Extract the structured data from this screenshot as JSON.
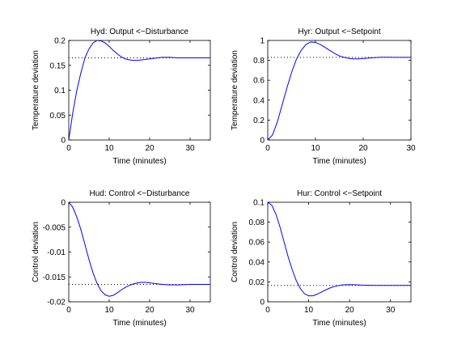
{
  "chart_data": [
    {
      "type": "line",
      "title": "Hyd: Output <−Disturbance",
      "xlabel": "Time (minutes)",
      "ylabel": "Temperature deviation",
      "xlim": [
        0,
        35
      ],
      "ylim": [
        0,
        0.2
      ],
      "xticks": [
        0,
        10,
        20,
        30
      ],
      "yticks": [
        0,
        0.05,
        0.1,
        0.15,
        0.2
      ],
      "ytick_labels": [
        "0",
        "0.05",
        "0.1",
        "0.15",
        "0.2"
      ],
      "reference_line": {
        "style": "dotted",
        "y": 0.165
      },
      "series": [
        {
          "color": "#0000ff",
          "x": [
            0,
            1,
            2,
            3,
            4,
            5,
            6,
            7,
            8,
            9,
            10,
            11,
            12,
            13,
            14,
            15,
            16,
            17,
            18,
            19,
            20,
            21,
            22,
            23,
            24,
            25,
            27,
            30,
            35
          ],
          "y": [
            0,
            0.055,
            0.1,
            0.135,
            0.165,
            0.183,
            0.195,
            0.2,
            0.199,
            0.195,
            0.188,
            0.18,
            0.173,
            0.167,
            0.163,
            0.161,
            0.16,
            0.16,
            0.161,
            0.162,
            0.163,
            0.164,
            0.165,
            0.166,
            0.166,
            0.166,
            0.165,
            0.165,
            0.165
          ]
        }
      ]
    },
    {
      "type": "line",
      "title": "Hyr: Output <−Setpoint",
      "xlabel": "Time (minutes)",
      "ylabel": "Temperature deviation",
      "xlim": [
        0,
        30
      ],
      "ylim": [
        0,
        1
      ],
      "xticks": [
        0,
        10,
        20,
        30
      ],
      "yticks": [
        0,
        0.2,
        0.4,
        0.6,
        0.8,
        1
      ],
      "ytick_labels": [
        "0",
        "0.2",
        "0.4",
        "0.6",
        "0.8",
        "1"
      ],
      "reference_line": {
        "style": "dotted",
        "y": 0.83
      },
      "series": [
        {
          "color": "#0000ff",
          "x": [
            0,
            1,
            2,
            3,
            4,
            5,
            6,
            7,
            8,
            9,
            10,
            11,
            12,
            13,
            14,
            15,
            16,
            17,
            18,
            19,
            20,
            21,
            22,
            23,
            24,
            25,
            27,
            30
          ],
          "y": [
            0,
            0.05,
            0.18,
            0.35,
            0.52,
            0.68,
            0.81,
            0.9,
            0.96,
            0.985,
            0.98,
            0.96,
            0.93,
            0.9,
            0.87,
            0.845,
            0.83,
            0.82,
            0.815,
            0.815,
            0.818,
            0.822,
            0.826,
            0.829,
            0.831,
            0.831,
            0.83,
            0.83
          ]
        }
      ]
    },
    {
      "type": "line",
      "title": "Hud: Control <−Disturbance",
      "xlabel": "Time (minutes)",
      "ylabel": "Control deviation",
      "xlim": [
        0,
        35
      ],
      "ylim": [
        -0.02,
        0
      ],
      "xticks": [
        0,
        10,
        20,
        30
      ],
      "yticks": [
        -0.02,
        -0.015,
        -0.01,
        -0.005,
        0
      ],
      "ytick_labels": [
        "-0.02",
        "-0.015",
        "-0.01",
        "-0.005",
        "0"
      ],
      "reference_line": {
        "style": "dotted",
        "y": -0.0165
      },
      "series": [
        {
          "color": "#0000ff",
          "x": [
            0,
            1,
            2,
            3,
            4,
            5,
            6,
            7,
            8,
            9,
            10,
            11,
            12,
            13,
            14,
            15,
            16,
            17,
            18,
            19,
            20,
            21,
            22,
            23,
            25,
            27,
            30,
            35
          ],
          "y": [
            0,
            -0.001,
            -0.003,
            -0.0055,
            -0.0085,
            -0.0115,
            -0.0142,
            -0.0163,
            -0.0178,
            -0.0186,
            -0.0189,
            -0.0187,
            -0.0182,
            -0.0176,
            -0.0171,
            -0.0167,
            -0.0164,
            -0.0162,
            -0.0161,
            -0.0161,
            -0.0162,
            -0.0163,
            -0.0164,
            -0.0165,
            -0.0166,
            -0.0166,
            -0.0165,
            -0.0165
          ]
        }
      ]
    },
    {
      "type": "line",
      "title": "Hur: Control <−Setpoint",
      "xlabel": "Time (minutes)",
      "ylabel": "Control deviation",
      "xlim": [
        0,
        35
      ],
      "ylim": [
        0,
        0.1
      ],
      "xticks": [
        0,
        10,
        20,
        30
      ],
      "yticks": [
        0,
        0.02,
        0.04,
        0.06,
        0.08,
        0.1
      ],
      "ytick_labels": [
        "0",
        "0.02",
        "0.04",
        "0.06",
        "0.08",
        "0.1"
      ],
      "reference_line": {
        "style": "dotted",
        "y": 0.0165
      },
      "series": [
        {
          "color": "#0000ff",
          "x": [
            0,
            1,
            2,
            3,
            4,
            5,
            6,
            7,
            8,
            9,
            10,
            11,
            12,
            13,
            14,
            15,
            16,
            17,
            18,
            19,
            20,
            21,
            22,
            23,
            25,
            27,
            30,
            35
          ],
          "y": [
            0.1,
            0.097,
            0.088,
            0.075,
            0.06,
            0.045,
            0.032,
            0.021,
            0.013,
            0.008,
            0.006,
            0.006,
            0.0075,
            0.0095,
            0.0115,
            0.0135,
            0.015,
            0.016,
            0.0168,
            0.0172,
            0.0173,
            0.0172,
            0.017,
            0.0168,
            0.0166,
            0.0165,
            0.0165,
            0.0165
          ]
        }
      ]
    }
  ]
}
